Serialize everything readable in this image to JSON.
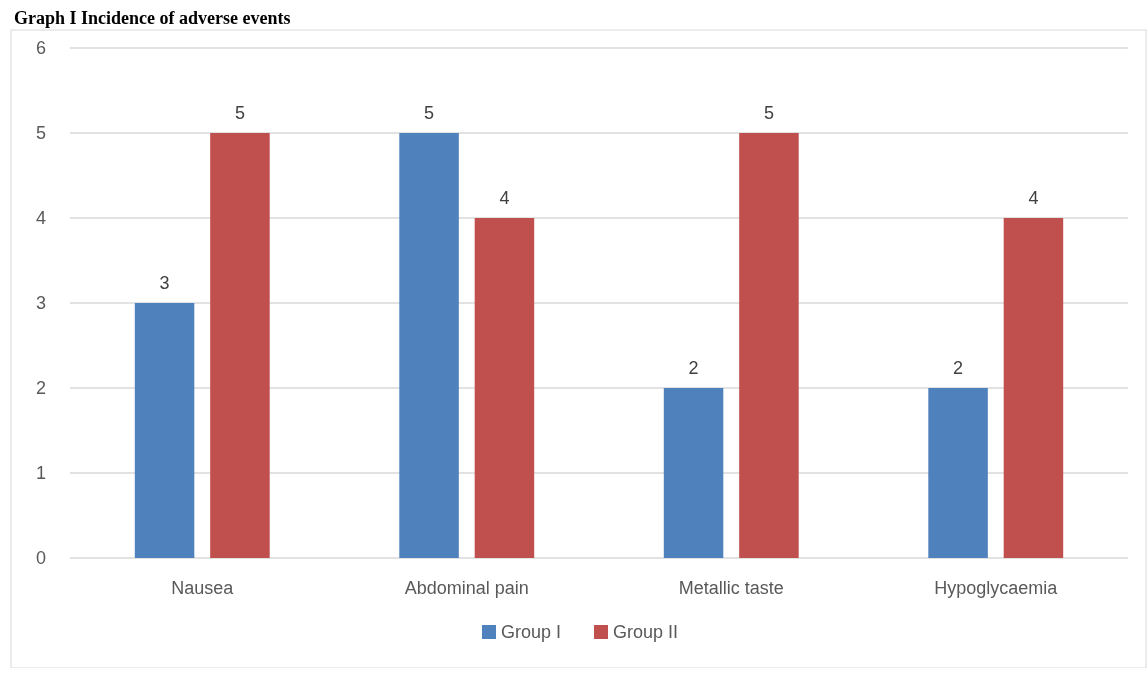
{
  "chart_data": {
    "type": "bar",
    "title": "Graph I Incidence of adverse events",
    "categories": [
      "Nausea",
      "Abdominal pain",
      "Metallic taste",
      "Hypoglycaemia"
    ],
    "series": [
      {
        "name": "Group I",
        "color": "#4f81bd",
        "values": [
          3,
          5,
          2,
          2
        ]
      },
      {
        "name": "Group II",
        "color": "#c0504d",
        "values": [
          5,
          4,
          5,
          4
        ]
      }
    ],
    "ylim": [
      0,
      6
    ],
    "yticks": [
      0,
      1,
      2,
      3,
      4,
      5,
      6
    ],
    "grid": "y",
    "legend": "bottom",
    "data_labels": true
  }
}
